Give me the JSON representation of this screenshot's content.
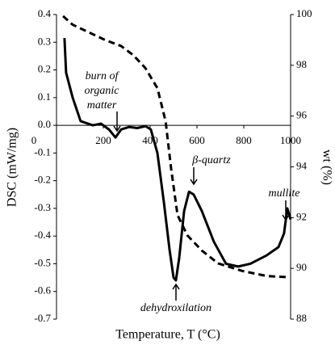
{
  "chart_data": {
    "type": "line",
    "xlabel": "Temperature, T (°C)",
    "ylabel": "DSC (mW/mg)",
    "y2label": "wt (%)",
    "xlim": [
      0,
      1000
    ],
    "xticks": [
      0,
      200,
      400,
      600,
      800,
      1000
    ],
    "ylim": [
      -0.7,
      0.4
    ],
    "yticks": [
      0.4,
      0.3,
      0.2,
      0.1,
      {
        "value": 0,
        "label": "0.0"
      },
      -0.1,
      -0.2,
      -0.3,
      -0.4,
      -0.5,
      -0.6,
      -0.7
    ],
    "y2lim": [
      88,
      100
    ],
    "y2ticks": [
      88,
      90,
      92,
      94,
      96,
      98,
      100
    ],
    "series": [
      {
        "color": "#000000",
        "dash": false,
        "x": [
          34,
          41,
          69,
          103,
          155,
          190,
          224,
          252,
          276,
          310,
          345,
          380,
          403,
          431,
          459,
          483,
          500,
          510,
          524,
          545,
          566,
          586,
          621,
          672,
          724,
          776,
          828,
          897,
          948,
          972,
          986,
          1000
        ],
        "values": [
          0.315,
          0.19,
          0.1,
          0.015,
          0,
          0.006,
          -0.015,
          -0.044,
          -0.015,
          -0.006,
          -0.01,
          -0.003,
          -0.015,
          -0.1,
          -0.28,
          -0.45,
          -0.55,
          -0.56,
          -0.48,
          -0.31,
          -0.24,
          -0.25,
          -0.31,
          -0.42,
          -0.5,
          -0.51,
          -0.5,
          -0.47,
          -0.44,
          -0.39,
          -0.3,
          -0.34
        ]
      },
      {
        "color": "#000000",
        "dash": true,
        "axis": "y2",
        "x": [
          28,
          69,
          138,
          207,
          276,
          328,
          379,
          431,
          466,
          490,
          517,
          559,
          621,
          690,
          793,
          897,
          993
        ],
        "values": [
          99.94,
          99.6,
          99.3,
          99.0,
          98.76,
          98.4,
          97.9,
          97.1,
          95.8,
          93.9,
          92.1,
          91.3,
          90.7,
          90.2,
          89.9,
          89.7,
          89.65
        ]
      }
    ],
    "annotations": [
      "burn of",
      "organic",
      "matter",
      "β-quartz",
      "mullite",
      "dehydroxilation"
    ]
  }
}
